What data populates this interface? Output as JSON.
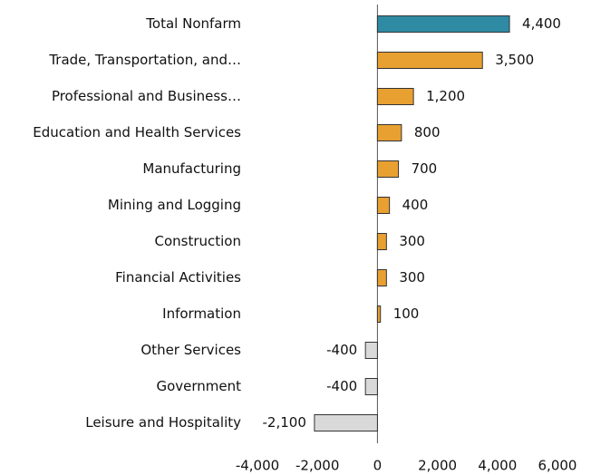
{
  "chart_data": {
    "type": "hbar",
    "categories": [
      "Total Nonfarm",
      "Trade, Transportation, and…",
      "Professional and Business…",
      "Education and Health Services",
      "Manufacturing",
      "Mining and Logging",
      "Construction",
      "Financial Activities",
      "Information",
      "Other Services",
      "Government",
      "Leisure and Hospitality"
    ],
    "values": [
      4400,
      3500,
      1200,
      800,
      700,
      400,
      300,
      300,
      100,
      -400,
      -400,
      -2100
    ],
    "value_labels": [
      "4,400",
      "3,500",
      "1,200",
      "800",
      "700",
      "400",
      "300",
      "300",
      "100",
      "-400",
      "-400",
      "-2,100"
    ],
    "colors": [
      "#2e8ba3",
      "#e8a030",
      "#e8a030",
      "#e8a030",
      "#e8a030",
      "#e8a030",
      "#e8a030",
      "#e8a030",
      "#e8a030",
      "#d9d9d9",
      "#d9d9d9",
      "#d9d9d9"
    ],
    "xlim": [
      -4000,
      6000
    ],
    "xticks": [
      {
        "value": -4000,
        "label": "-4,000"
      },
      {
        "value": -2000,
        "label": "-2,000"
      },
      0,
      {
        "value": 2000,
        "label": "2,000"
      },
      {
        "value": 4000,
        "label": "4,000"
      },
      {
        "value": 6000,
        "label": "6,000"
      }
    ]
  }
}
